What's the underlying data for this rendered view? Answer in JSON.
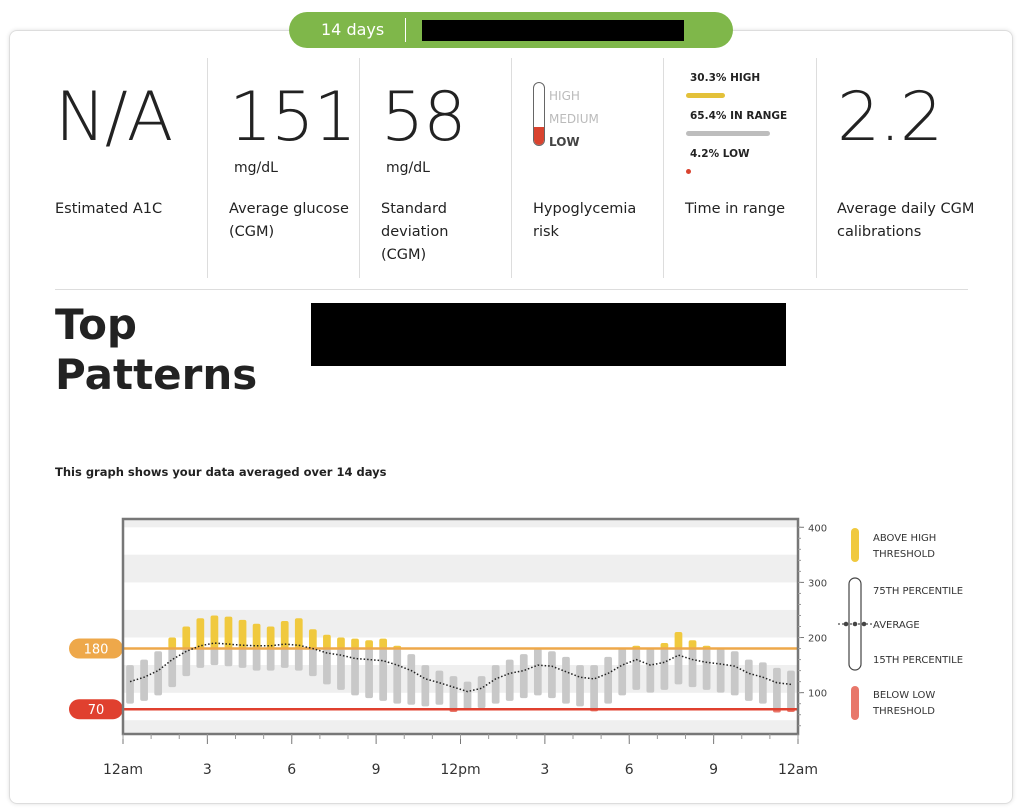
{
  "header": {
    "period": "14 days"
  },
  "stats": [
    {
      "value": "N/A",
      "label": "Estimated A1C"
    },
    {
      "value": 151,
      "unit": "mg/dL",
      "label": "Average glucose (CGM)"
    },
    {
      "value": 58,
      "unit": "mg/dL",
      "label": "Standard deviation (CGM)"
    },
    {
      "label": "Hypoglycemia risk",
      "levels": [
        "HIGH",
        "MEDIUM",
        "LOW"
      ],
      "current": "LOW"
    },
    {
      "label": "Time in range",
      "items": [
        {
          "value": 30.3,
          "label": "30.3% HIGH",
          "color": "#e3c13a"
        },
        {
          "value": 65.4,
          "label": "65.4% IN RANGE",
          "color": "#bdbdbd"
        },
        {
          "value": 4.2,
          "label": "4.2% LOW",
          "color": "#d9432f"
        }
      ]
    },
    {
      "value": 2.2,
      "label": "Average daily CGM calibrations"
    }
  ],
  "section_title": "Top Patterns",
  "chart_data": {
    "type": "range_bar",
    "caption": "This graph shows your data averaged over 14 days",
    "xlim": [
      0,
      24
    ],
    "xticks": [
      {
        "value": 0,
        "label": "12am"
      },
      3,
      6,
      9,
      {
        "value": 12,
        "label": "12pm"
      },
      {
        "value": 15,
        "label": "3"
      },
      {
        "value": 18,
        "label": "6"
      },
      {
        "value": 21,
        "label": "9"
      },
      {
        "value": 24,
        "label": "12am"
      }
    ],
    "ylim": [
      25,
      415
    ],
    "yticks": [
      100,
      200,
      300,
      400
    ],
    "thresholds": {
      "high": 180,
      "low": 70,
      "high_color": "#eea84a",
      "low_color": "#e0402f"
    },
    "x": [
      0.25,
      0.75,
      1.25,
      1.75,
      2.25,
      2.75,
      3.25,
      3.75,
      4.25,
      4.75,
      5.25,
      5.75,
      6.25,
      6.75,
      7.25,
      7.75,
      8.25,
      8.75,
      9.25,
      9.75,
      10.25,
      10.75,
      11.25,
      11.75,
      12.25,
      12.75,
      13.25,
      13.75,
      14.25,
      14.75,
      15.25,
      15.75,
      16.25,
      16.75,
      17.25,
      17.75,
      18.25,
      18.75,
      19.25,
      19.75,
      20.25,
      20.75,
      21.25,
      21.75,
      22.25,
      22.75,
      23.25,
      23.75
    ],
    "series": [
      {
        "name": "75TH PERCENTILE",
        "values": [
          150,
          160,
          175,
          200,
          220,
          235,
          240,
          238,
          232,
          225,
          220,
          230,
          235,
          215,
          205,
          200,
          198,
          195,
          198,
          185,
          170,
          150,
          140,
          130,
          120,
          130,
          150,
          160,
          170,
          180,
          175,
          165,
          150,
          150,
          165,
          180,
          185,
          180,
          190,
          210,
          195,
          185,
          180,
          175,
          160,
          155,
          145,
          140
        ]
      },
      {
        "name": "AVERAGE",
        "values": [
          120,
          128,
          140,
          160,
          175,
          185,
          190,
          188,
          186,
          185,
          185,
          188,
          186,
          180,
          172,
          168,
          162,
          160,
          158,
          150,
          140,
          125,
          118,
          110,
          102,
          108,
          125,
          135,
          140,
          150,
          148,
          138,
          128,
          125,
          135,
          150,
          160,
          150,
          155,
          168,
          160,
          155,
          152,
          148,
          135,
          128,
          118,
          115
        ]
      },
      {
        "name": "15TH PERCENTILE",
        "values": [
          80,
          85,
          95,
          110,
          130,
          145,
          150,
          148,
          145,
          140,
          140,
          145,
          140,
          130,
          115,
          105,
          95,
          90,
          85,
          80,
          78,
          75,
          78,
          65,
          68,
          72,
          80,
          85,
          90,
          95,
          90,
          80,
          75,
          66,
          80,
          95,
          105,
          100,
          105,
          115,
          110,
          105,
          100,
          95,
          85,
          80,
          64,
          65
        ]
      }
    ],
    "colors": {
      "range": "#c8c8c8",
      "above": "#f0c93e",
      "below": "#e8776a",
      "average": "#222222"
    },
    "legend": [
      "ABOVE HIGH THRESHOLD",
      "75TH PERCENTILE",
      "AVERAGE",
      "15TH PERCENTILE",
      "BELOW LOW THRESHOLD"
    ]
  }
}
